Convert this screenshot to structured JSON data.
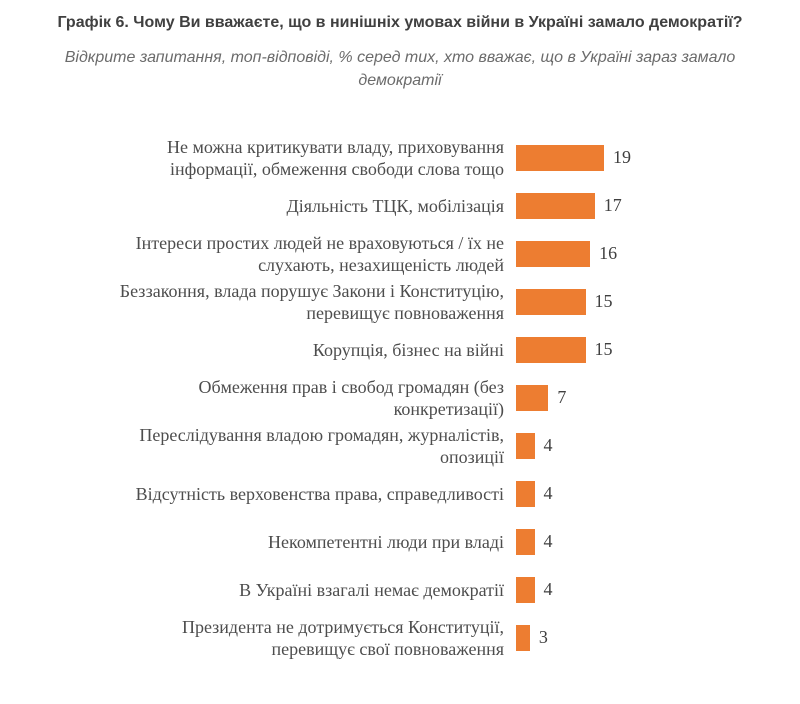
{
  "header": {
    "title": "Графік 6. Чому Ви вважаєте, що в нинішніх умовах війни в Україні замало демократії?",
    "subtitle": "Відкрите запитання, топ-відповіді, % серед тих, хто вважає, що в Україні зараз замало\nдемократії"
  },
  "chart_data": {
    "type": "bar",
    "orientation": "horizontal",
    "title": "Графік 6. Чому Ви вважаєте, що в нинішніх умовах війни в Україні замало демократії?",
    "subtitle": "Відкрите запитання, топ-відповіді, % серед тих, хто вважає, що в Україні зараз замало демократії",
    "categories": [
      "Не можна критикувати владу, приховування\nінформації, обмеження свободи слова тощо",
      "Діяльність ТЦК, мобілізація",
      "Інтереси простих людей не враховуються / їх не\nслухають, незахищеність людей",
      "Беззаконня, влада порушує Закони і Конституцію,\nперевищує повноваження",
      "Корупція, бізнес на війні",
      "Обмеження прав і свобод громадян (без\nконкретизації)",
      "Переслідування владою громадян, журналістів,\nопозиції",
      "Відсутність верховенства права, справедливості",
      "Некомпетентні люди при владі",
      "В Україні взагалі немає демократії",
      "Президента не дотримується Конституції,\nперевищує свої повноваження"
    ],
    "values": [
      19,
      17,
      16,
      15,
      15,
      7,
      4,
      4,
      4,
      4,
      3
    ],
    "unit": "%",
    "xlim": [
      0,
      20
    ],
    "grid": false,
    "axes_visible": false,
    "legend": "none",
    "data_labels": true,
    "bar_color": "#ED7D31",
    "label_color": "#4d4d4d",
    "value_label_color": "#404040",
    "title_color": "#404040",
    "subtitle_color": "#6b6b6b"
  }
}
